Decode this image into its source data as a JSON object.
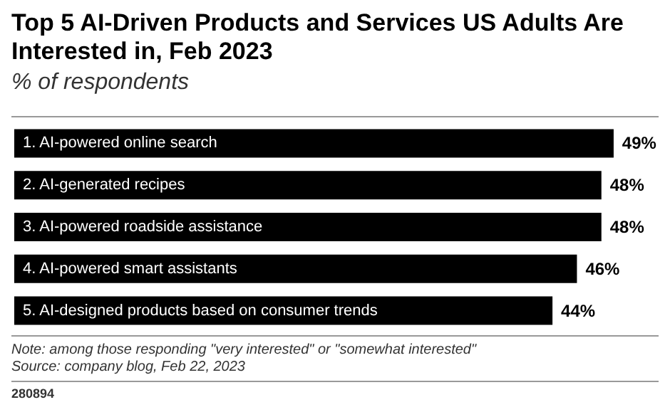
{
  "chart_data": {
    "type": "bar",
    "orientation": "horizontal",
    "title": "Top 5 AI-Driven Products and Services US Adults Are Interested in, Feb 2023",
    "subtitle": "% of respondents",
    "categories": [
      "1. AI-powered online search",
      "2. AI-generated recipes",
      "3. AI-powered roadside assistance",
      "4. AI-powered smart assistants",
      "5. AI-designed products based on consumer trends"
    ],
    "values": [
      49,
      48,
      48,
      46,
      44
    ],
    "value_labels": [
      "49%",
      "48%",
      "48%",
      "46%",
      "44%"
    ],
    "color": "#000000",
    "annotations": [
      "Note: among those responding \"very interested\" or \"somewhat interested\"",
      "Source: company blog, Feb 22, 2023",
      "280894"
    ]
  }
}
